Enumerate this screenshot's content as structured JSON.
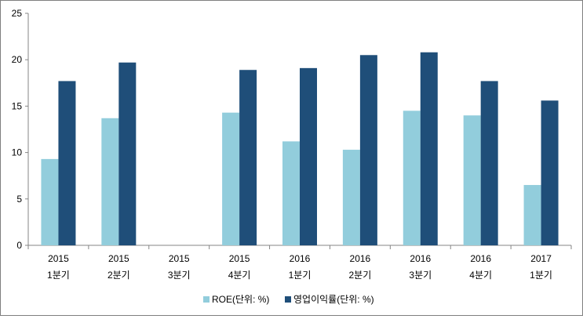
{
  "chart_data": {
    "type": "bar",
    "title": "",
    "xlabel": "",
    "ylabel": "",
    "ylim": [
      0,
      25
    ],
    "yticks": [
      0,
      5,
      10,
      15,
      20,
      25
    ],
    "categories": [
      [
        "2015",
        "1분기"
      ],
      [
        "2015",
        "2분기"
      ],
      [
        "2015",
        "3분기"
      ],
      [
        "2015",
        "4분기"
      ],
      [
        "2016",
        "1분기"
      ],
      [
        "2016",
        "2분기"
      ],
      [
        "2016",
        "3분기"
      ],
      [
        "2016",
        "4분기"
      ],
      [
        "2017",
        "1분기"
      ]
    ],
    "series": [
      {
        "name": "ROE(단위: %)",
        "color": "#92cddc",
        "values": [
          9.3,
          13.7,
          null,
          14.3,
          11.2,
          10.3,
          14.5,
          14.0,
          6.5
        ]
      },
      {
        "name": "영업이익률(단위: %)",
        "color": "#1f4e79",
        "values": [
          17.7,
          19.7,
          null,
          18.9,
          19.1,
          20.5,
          20.8,
          17.7,
          15.6
        ]
      }
    ],
    "legend": "bottom",
    "grid": false
  }
}
